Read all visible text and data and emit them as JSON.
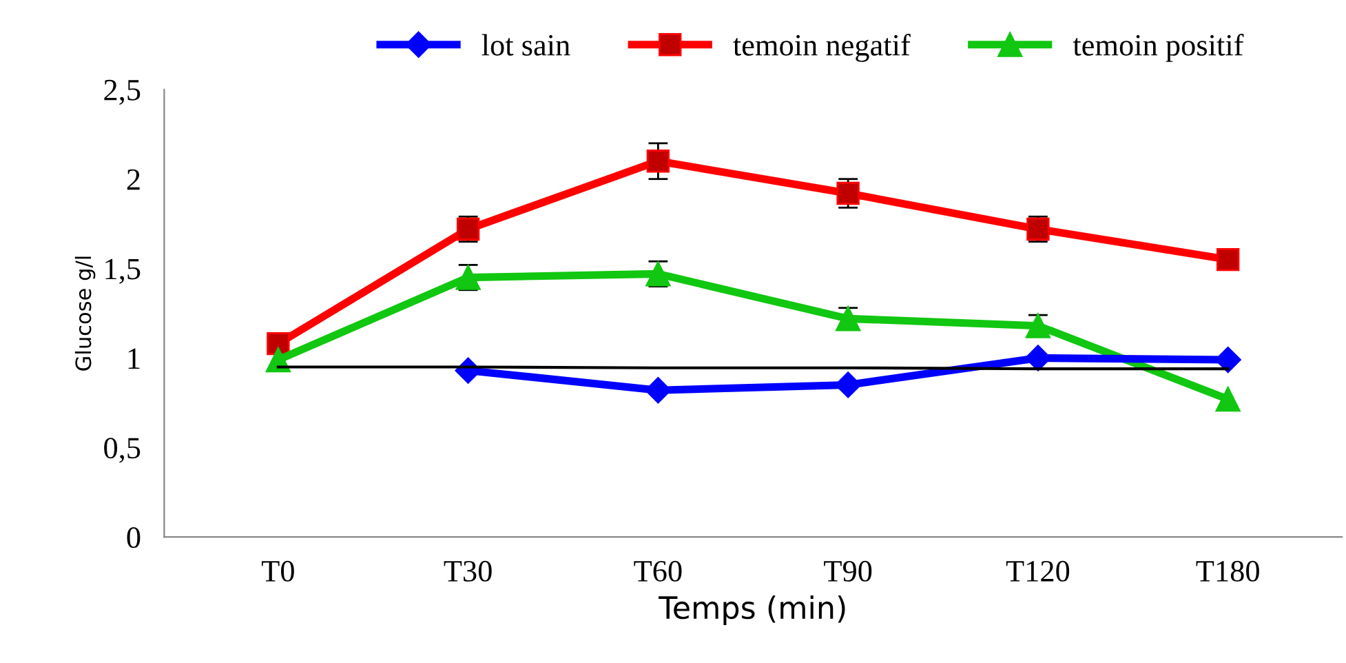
{
  "chart_data": {
    "type": "line",
    "xlabel": "Temps (min)",
    "ylabel": "Glucose g/l",
    "categories": [
      "T0",
      "T30",
      "T60",
      "T90",
      "T120",
      "T180"
    ],
    "series": [
      {
        "name": "lot sain",
        "color": "#0000ff",
        "marker": "diamond",
        "values": [
          null,
          0.93,
          0.82,
          0.85,
          1.0,
          0.99
        ]
      },
      {
        "name": "temoin negatif",
        "color": "#ff0000",
        "marker": "square",
        "values": [
          1.08,
          1.72,
          2.1,
          1.92,
          1.72,
          1.55
        ],
        "errors": [
          null,
          0.07,
          0.1,
          0.08,
          0.07,
          null
        ]
      },
      {
        "name": "temoin positif",
        "color": "#11c711",
        "marker": "triangle",
        "values": [
          0.99,
          1.45,
          1.47,
          1.22,
          1.18,
          0.77
        ],
        "errors": [
          null,
          0.07,
          0.07,
          0.06,
          0.06,
          null
        ]
      },
      {
        "color": "#000000",
        "marker": "none",
        "values": [
          0.95,
          0.95,
          0.945,
          0.945,
          0.94,
          0.94
        ]
      }
    ],
    "ylim": [
      0,
      2.5
    ],
    "yticks": [
      0,
      {
        "value": 0.5,
        "label": "0,5"
      },
      1,
      {
        "value": 1.5,
        "label": "1,5"
      },
      2,
      {
        "value": 2.5,
        "label": "2,5"
      }
    ],
    "grid": false,
    "legend": "top"
  }
}
